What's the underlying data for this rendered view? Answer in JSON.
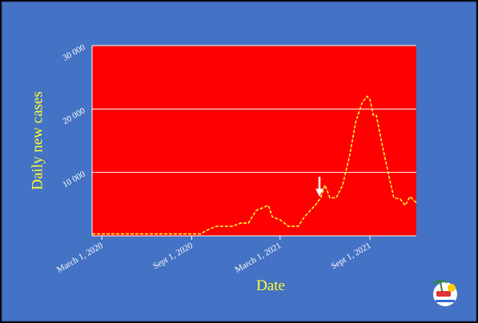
{
  "chart_data": {
    "type": "line",
    "y_label": "Daily new  cases",
    "x_label": "Date",
    "x": [
      "2020-02-10",
      "2020-09-02",
      "2020-09-19",
      "2020-10-05",
      "2020-10-21",
      "2020-11-23",
      "2020-12-10",
      "2020-12-26",
      "2021-01-11",
      "2021-02-05",
      "2021-02-13",
      "2021-03-02",
      "2021-03-18",
      "2021-04-07",
      "2021-04-20",
      "2021-05-14",
      "2021-05-23",
      "2021-06-01",
      "2021-06-11",
      "2021-06-24",
      "2021-07-07",
      "2021-07-21",
      "2021-08-03",
      "2021-08-16",
      "2021-08-26",
      "2021-09-01",
      "2021-09-08",
      "2021-09-14",
      "2021-09-27",
      "2021-10-11",
      "2021-10-20",
      "2021-11-02",
      "2021-11-12",
      "2021-11-22",
      "2021-12-05"
    ],
    "series": [
      {
        "name": "Daily new cases",
        "color": "#ffff33",
        "values": [
          300,
          300,
          300,
          1000,
          1500,
          1500,
          2000,
          2000,
          4000,
          4800,
          3000,
          2500,
          1500,
          1500,
          3000,
          5000,
          6000,
          8000,
          6000,
          6000,
          8000,
          12500,
          18000,
          21000,
          22000,
          21500,
          19000,
          19000,
          14000,
          9000,
          6000,
          5800,
          4800,
          6200,
          5200
        ]
      }
    ],
    "xlim": [
      "2020-02-10",
      "2021-12-05"
    ],
    "xticks": [
      {
        "value": "2020-03-01",
        "label": "March 1, 2020"
      },
      {
        "value": "2020-09-01",
        "label": "Sept 1, 2020"
      },
      {
        "value": "2021-03-01",
        "label": "March 1, 2021"
      },
      {
        "value": "2021-09-01",
        "label": "Sept 1, 2021"
      }
    ],
    "ylim": [
      0,
      30000
    ],
    "yticks": [
      {
        "value": 10000,
        "label": "10 000"
      },
      {
        "value": 20000,
        "label": "20 000"
      },
      {
        "value": 30000,
        "label": "30 000"
      }
    ],
    "grid": true,
    "plot_color": "#ff0000"
  }
}
